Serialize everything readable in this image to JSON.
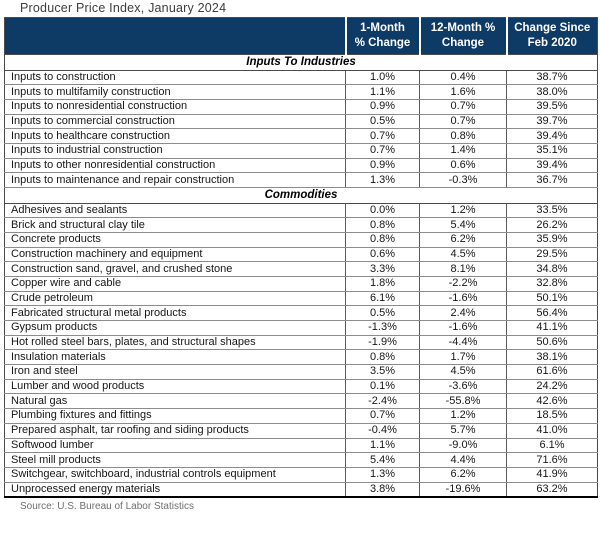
{
  "title": "Producer Price Index, January 2024",
  "source": "Source: U.S. Bureau of Labor Statistics",
  "colors": {
    "header_bg": "#0e3a66",
    "header_text": "#ffffff",
    "body_text": "#161616",
    "grid_line": "#8c8c8c"
  },
  "chart_data": {
    "type": "table",
    "title": "Producer Price Index, January 2024",
    "source": "Source: U.S. Bureau of Labor Statistics",
    "columns": [
      "1-Month % Change",
      "12-Month % Change",
      "Change Since Feb 2020"
    ],
    "header": [
      {
        "line1": "1-Month",
        "line2": "% Change"
      },
      {
        "line1": "12-Month %",
        "line2": "Change"
      },
      {
        "line1": "Change Since",
        "line2": "Feb 2020"
      }
    ],
    "sections": [
      {
        "label": "Inputs To Industries",
        "rows": [
          {
            "label": "Inputs to construction",
            "values": [
              "1.0%",
              "0.4%",
              "38.7%"
            ]
          },
          {
            "label": "Inputs to multifamily construction",
            "values": [
              "1.1%",
              "1.6%",
              "38.0%"
            ]
          },
          {
            "label": "Inputs to nonresidential construction",
            "values": [
              "0.9%",
              "0.7%",
              "39.5%"
            ]
          },
          {
            "label": "Inputs to commercial construction",
            "values": [
              "0.5%",
              "0.7%",
              "39.7%"
            ]
          },
          {
            "label": "Inputs to healthcare construction",
            "values": [
              "0.7%",
              "0.8%",
              "39.4%"
            ]
          },
          {
            "label": "Inputs to industrial construction",
            "values": [
              "0.7%",
              "1.4%",
              "35.1%"
            ]
          },
          {
            "label": "Inputs to other nonresidential construction",
            "values": [
              "0.9%",
              "0.6%",
              "39.4%"
            ]
          },
          {
            "label": "Inputs to maintenance and repair construction",
            "values": [
              "1.3%",
              "-0.3%",
              "36.7%"
            ]
          }
        ]
      },
      {
        "label": "Commodities",
        "rows": [
          {
            "label": "Adhesives and sealants",
            "values": [
              "0.0%",
              "1.2%",
              "33.5%"
            ]
          },
          {
            "label": "Brick and structural clay tile",
            "values": [
              "0.8%",
              "5.4%",
              "26.2%"
            ]
          },
          {
            "label": "Concrete products",
            "values": [
              "0.8%",
              "6.2%",
              "35.9%"
            ]
          },
          {
            "label": "Construction machinery and equipment",
            "values": [
              "0.6%",
              "4.5%",
              "29.5%"
            ]
          },
          {
            "label": "Construction sand, gravel, and crushed stone",
            "values": [
              "3.3%",
              "8.1%",
              "34.8%"
            ]
          },
          {
            "label": "Copper wire and cable",
            "values": [
              "1.8%",
              "-2.2%",
              "32.8%"
            ]
          },
          {
            "label": "Crude petroleum",
            "values": [
              "6.1%",
              "-1.6%",
              "50.1%"
            ]
          },
          {
            "label": "Fabricated structural metal products",
            "values": [
              "0.5%",
              "2.4%",
              "56.4%"
            ]
          },
          {
            "label": "Gypsum products",
            "values": [
              "-1.3%",
              "-1.6%",
              "41.1%"
            ]
          },
          {
            "label": "Hot rolled steel bars, plates, and structural shapes",
            "values": [
              "-1.9%",
              "-4.4%",
              "50.6%"
            ]
          },
          {
            "label": "Insulation materials",
            "values": [
              "0.8%",
              "1.7%",
              "38.1%"
            ]
          },
          {
            "label": "Iron and steel",
            "values": [
              "3.5%",
              "4.5%",
              "61.6%"
            ]
          },
          {
            "label": "Lumber and wood products",
            "values": [
              "0.1%",
              "-3.6%",
              "24.2%"
            ]
          },
          {
            "label": "Natural gas",
            "values": [
              "-2.4%",
              "-55.8%",
              "42.6%"
            ]
          },
          {
            "label": "Plumbing fixtures and fittings",
            "values": [
              "0.7%",
              "1.2%",
              "18.5%"
            ]
          },
          {
            "label": "Prepared asphalt, tar roofing and siding products",
            "values": [
              "-0.4%",
              "5.7%",
              "41.0%"
            ]
          },
          {
            "label": "Softwood lumber",
            "values": [
              "1.1%",
              "-9.0%",
              "6.1%"
            ]
          },
          {
            "label": "Steel mill products",
            "values": [
              "5.4%",
              "4.4%",
              "71.6%"
            ]
          },
          {
            "label": "Switchgear, switchboard, industrial controls equipment",
            "values": [
              "1.3%",
              "6.2%",
              "41.9%"
            ]
          },
          {
            "label": "Unprocessed energy materials",
            "values": [
              "3.8%",
              "-19.6%",
              "63.2%"
            ]
          }
        ]
      }
    ]
  }
}
